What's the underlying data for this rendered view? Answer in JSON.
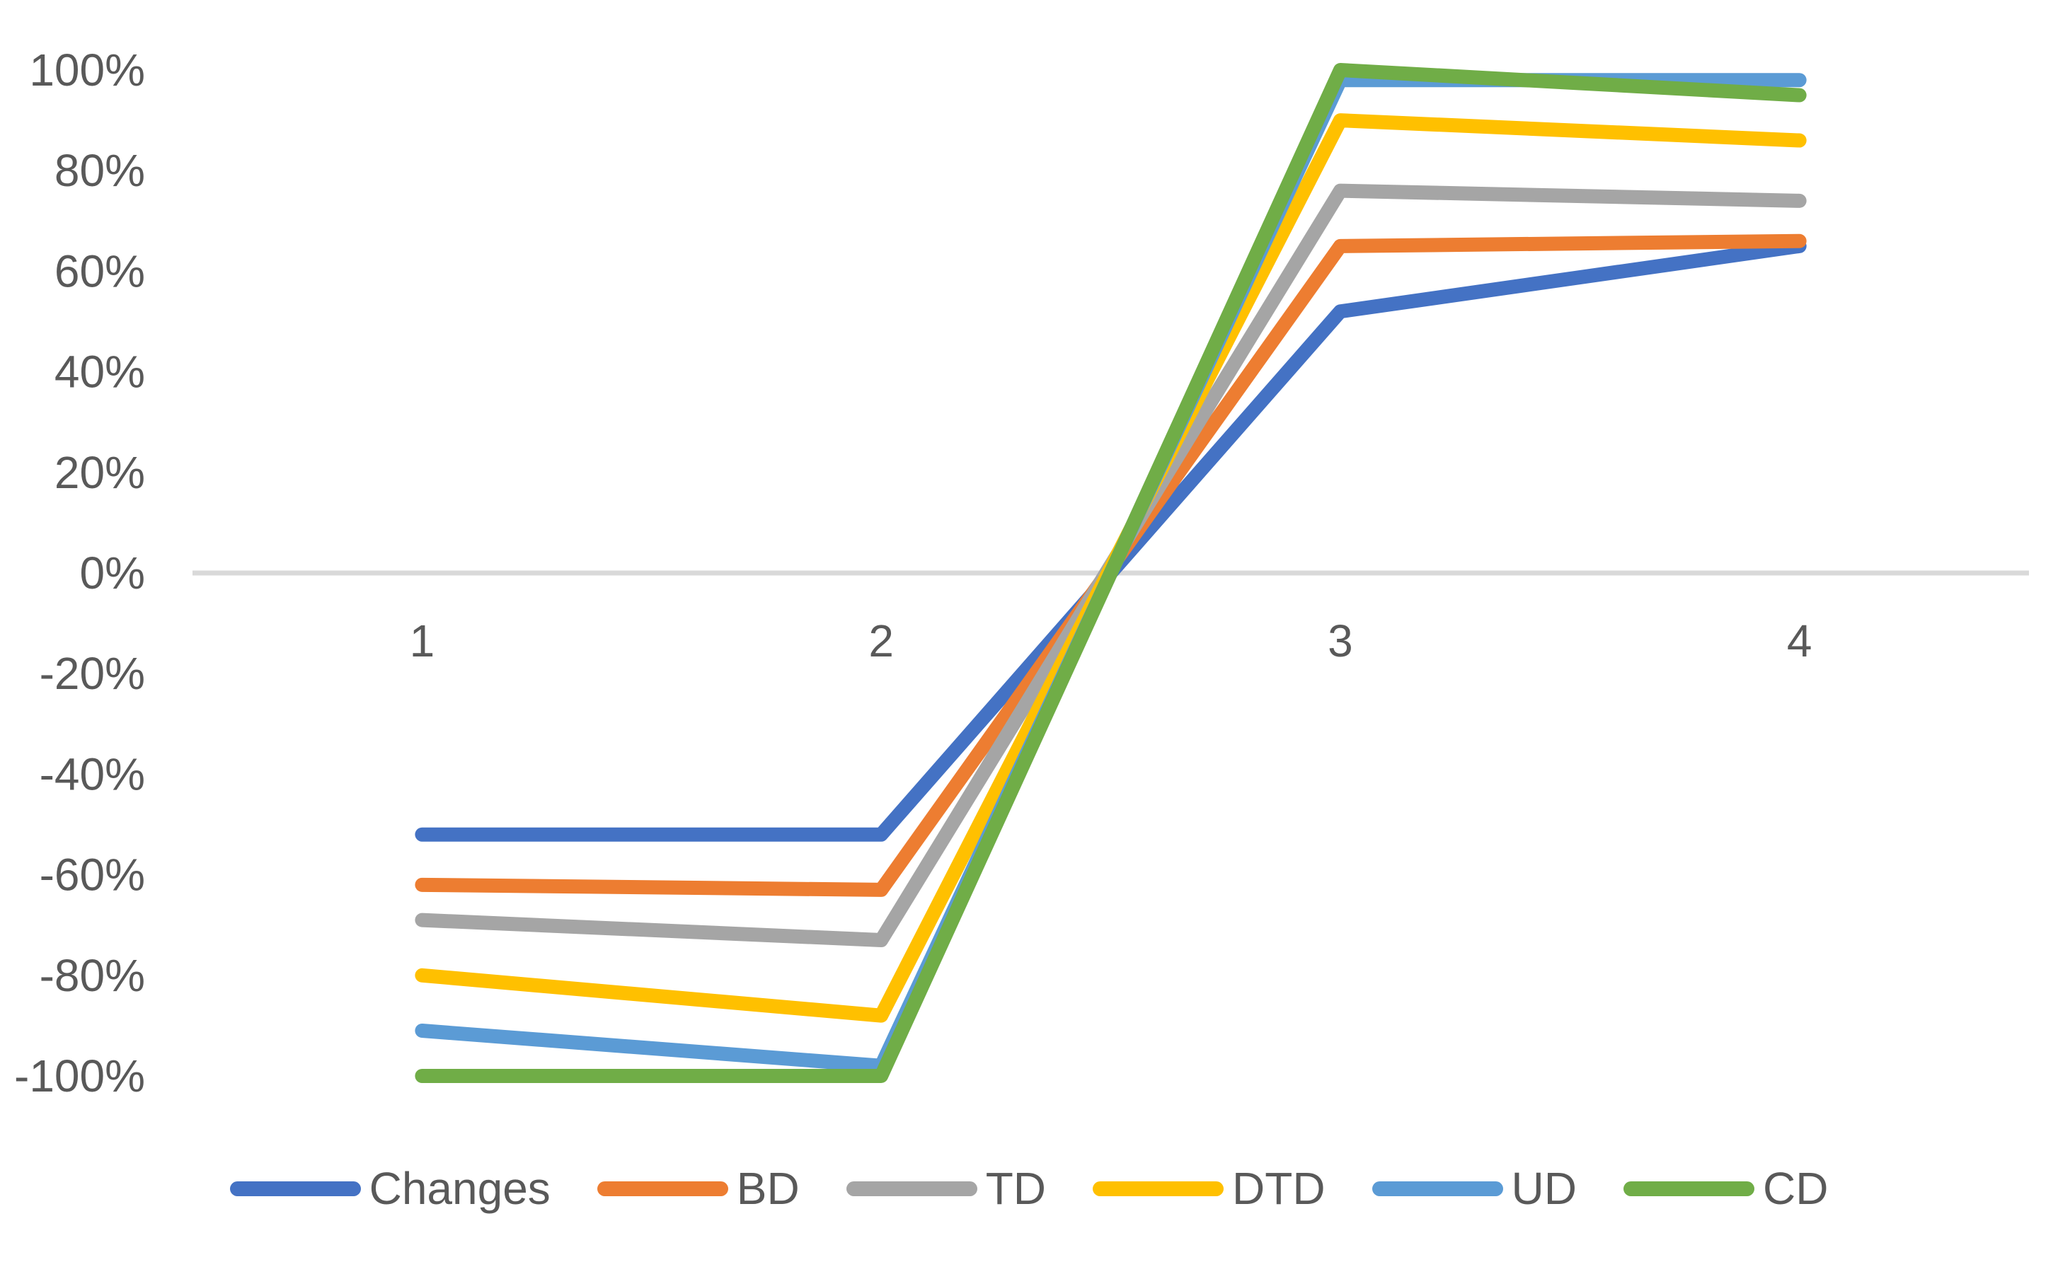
{
  "chart_data": {
    "type": "line",
    "title": "",
    "xlabel": "",
    "ylabel": "",
    "categories": [
      "1",
      "2",
      "3",
      "4"
    ],
    "x_tick_labels": [
      "1",
      "2",
      "3",
      "4"
    ],
    "y_tick_labels": [
      "100%",
      "80%",
      "60%",
      "40%",
      "20%",
      "0%",
      "-20%",
      "-40%",
      "-60%",
      "-80%",
      "-100%"
    ],
    "ylim": [
      -100,
      100
    ],
    "y_tick_step_pct": 20,
    "grid": "zero-line-only",
    "legend_position": "bottom",
    "series": [
      {
        "name": "Changes",
        "color": "#4472C4",
        "values": [
          -52,
          -52,
          52,
          65
        ]
      },
      {
        "name": "BD",
        "color": "#ED7D31",
        "values": [
          -62,
          -63,
          65,
          66
        ]
      },
      {
        "name": "TD",
        "color": "#A5A5A5",
        "values": [
          -69,
          -73,
          76,
          74
        ]
      },
      {
        "name": "DTD",
        "color": "#FFC000",
        "values": [
          -80,
          -88,
          90,
          86
        ]
      },
      {
        "name": "UD",
        "color": "#5B9BD5",
        "values": [
          -91,
          -98,
          98,
          98
        ]
      },
      {
        "name": "CD",
        "color": "#70AD47",
        "values": [
          -100,
          -100,
          100,
          95
        ]
      }
    ]
  },
  "colors": {
    "axis_text": "#595959",
    "zero_gridline": "#D9D9D9",
    "background": "#FFFFFF"
  }
}
